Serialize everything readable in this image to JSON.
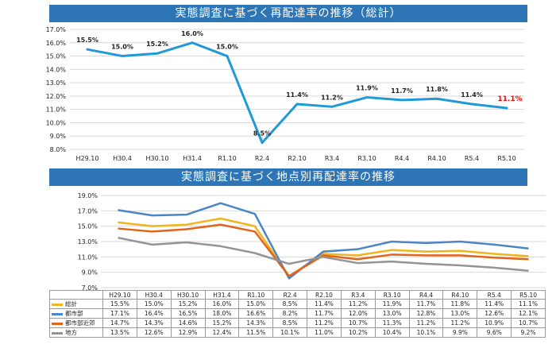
{
  "chart_data": [
    {
      "type": "line",
      "title": "実態調査に基づく再配達率の推移（総計）",
      "categories": [
        "H29.10",
        "H30.4",
        "H30.10",
        "H31.4",
        "R1.10",
        "R2.4",
        "R2.10",
        "R3.4",
        "R3.10",
        "R4.4",
        "R4.10",
        "R5.4",
        "R5.10"
      ],
      "series": [
        {
          "values": [
            15.5,
            15.0,
            15.2,
            16.0,
            15.0,
            8.5,
            11.4,
            11.2,
            11.9,
            11.7,
            11.8,
            11.4,
            11.1
          ]
        }
      ],
      "data_labels": [
        "15.5%",
        "15.0%",
        "15.2%",
        "16.0%",
        "15.0%",
        "8.5%",
        "11.4%",
        "11.2%",
        "11.9%",
        "11.7%",
        "11.8%",
        "11.4%",
        "11.1%"
      ],
      "ylim": [
        8.0,
        17.0
      ],
      "yticks": [
        "8.0%",
        "9.0%",
        "10.0%",
        "11.0%",
        "12.0%",
        "13.0%",
        "14.0%",
        "15.0%",
        "16.0%",
        "17.0%"
      ],
      "color": "#1f9ad6",
      "highlight_color": "#ff0000",
      "grid": true
    },
    {
      "type": "line",
      "title": "実態調査に基づく地点別再配達率の推移",
      "categories": [
        "H29.10",
        "H30.4",
        "H30.10",
        "H31.4",
        "R1.10",
        "R2.4",
        "R2.10",
        "R3.4",
        "R3.10",
        "R4.4",
        "R4.10",
        "R5.4",
        "R5.10"
      ],
      "series": [
        {
          "name": "総計",
          "color": "#f0b41e",
          "values": [
            15.5,
            15.0,
            15.2,
            16.0,
            15.0,
            8.5,
            11.4,
            11.2,
            11.9,
            11.7,
            11.8,
            11.4,
            11.1
          ],
          "labels": [
            "15.5%",
            "15.0%",
            "15.2%",
            "16.0%",
            "15.0%",
            "8.5%",
            "11.4%",
            "11.2%",
            "11.9%",
            "11.7%",
            "11.8%",
            "11.4%",
            "11.1%"
          ]
        },
        {
          "name": "都市部",
          "color": "#4a86c5",
          "values": [
            17.1,
            16.4,
            16.5,
            18.0,
            16.6,
            8.2,
            11.7,
            12.0,
            13.0,
            12.8,
            13.0,
            12.6,
            12.1
          ],
          "labels": [
            "17.1%",
            "16.4%",
            "16.5%",
            "18.0%",
            "16.6%",
            "8.2%",
            "11.7%",
            "12.0%",
            "13.0%",
            "12.8%",
            "13.0%",
            "12.6%",
            "12.1%"
          ]
        },
        {
          "name": "都市部近郊",
          "color": "#e2641b",
          "values": [
            14.7,
            14.3,
            14.6,
            15.2,
            14.3,
            8.5,
            11.2,
            10.7,
            11.3,
            11.2,
            11.2,
            10.9,
            10.7
          ],
          "labels": [
            "14.7%",
            "14.3%",
            "14.6%",
            "15.2%",
            "14.3%",
            "8.5%",
            "11.2%",
            "10.7%",
            "11.3%",
            "11.2%",
            "11.2%",
            "10.9%",
            "10.7%"
          ]
        },
        {
          "name": "地方",
          "color": "#949494",
          "values": [
            13.5,
            12.6,
            12.9,
            12.4,
            11.5,
            10.1,
            11.0,
            10.2,
            10.4,
            10.1,
            9.9,
            9.6,
            9.2
          ],
          "labels": [
            "13.5%",
            "12.6%",
            "12.9%",
            "12.4%",
            "11.5%",
            "10.1%",
            "11.0%",
            "10.2%",
            "10.4%",
            "10.1%",
            "9.9%",
            "9.6%",
            "9.2%"
          ]
        }
      ],
      "ylim": [
        7.0,
        19.0
      ],
      "yticks": [
        "7.0%",
        "9.0%",
        "11.0%",
        "13.0%",
        "15.0%",
        "17.0%",
        "19.0%"
      ],
      "legend": "data-table",
      "grid": true
    }
  ]
}
